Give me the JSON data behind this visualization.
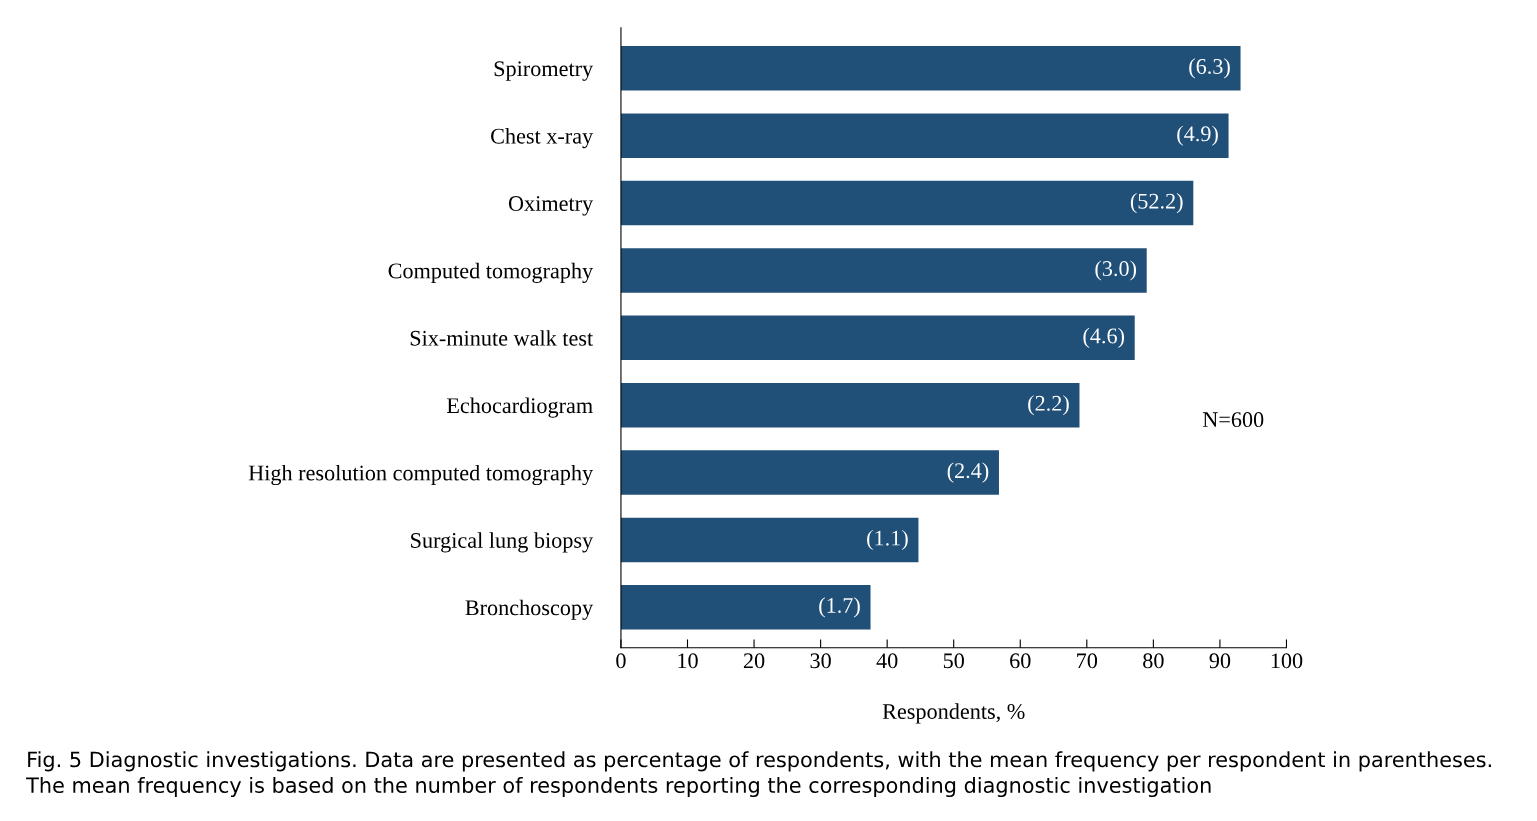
{
  "chart_data": {
    "type": "bar",
    "orientation": "horizontal",
    "categories": [
      "Spirometry",
      "Chest x-ray",
      "Oximetry",
      "Computed tomography",
      "Six-minute walk test",
      "Echocardiogram",
      "High resolution computed tomography",
      "Surgical lung biopsy",
      "Bronchoscopy"
    ],
    "values": [
      93.1,
      91.3,
      86.0,
      79.0,
      77.2,
      68.9,
      56.8,
      44.7,
      37.5
    ],
    "color": "#204f78",
    "xlabel": "Respondents, %",
    "xlim": [
      0,
      100
    ],
    "xticks": [
      0,
      10,
      20,
      30,
      40,
      50,
      60,
      70,
      80,
      90,
      100
    ],
    "grid": false,
    "legend": false,
    "annotations": [
      {
        "text": "(6.3)",
        "x": 93.1,
        "y": "Spirometry"
      },
      {
        "text": "(4.9)",
        "x": 91.3,
        "y": "Chest x-ray"
      },
      {
        "text": "(52.2)",
        "x": 86.0,
        "y": "Oximetry"
      },
      {
        "text": "(3.0)",
        "x": 79.0,
        "y": "Computed tomography"
      },
      {
        "text": "(4.6)",
        "x": 77.2,
        "y": "Six-minute walk test"
      },
      {
        "text": "(2.2)",
        "x": 68.9,
        "y": "Echocardiogram"
      },
      {
        "text": "(2.4)",
        "x": 56.8,
        "y": "High resolution computed tomography"
      },
      {
        "text": "(1.1)",
        "x": 44.7,
        "y": "Surgical lung biopsy"
      },
      {
        "text": "(1.7)",
        "x": 37.5,
        "y": "Bronchoscopy"
      },
      "N=600",
      "Fig. 5 Diagnostic investigations. Data are presented as percentage of respondents, with the mean frequency per respondent in parentheses. The mean frequency is based on the number of respondents reporting the corresponding diagnostic investigation"
    ]
  }
}
